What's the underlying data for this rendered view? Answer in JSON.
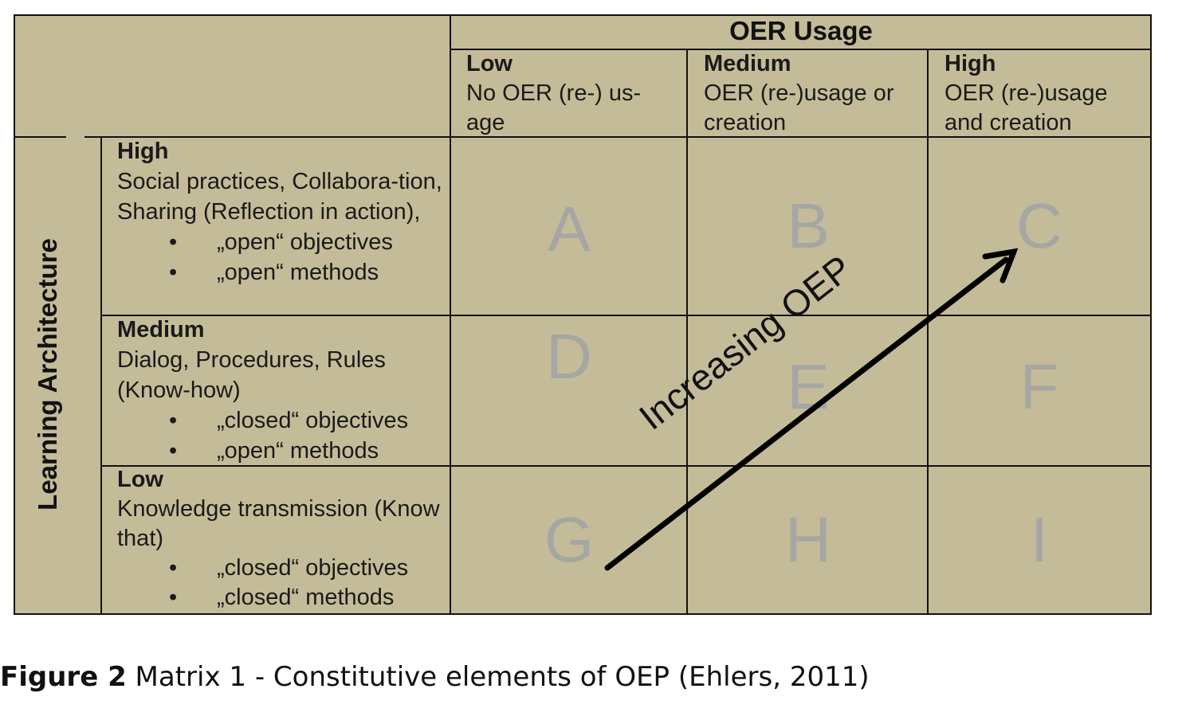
{
  "matrix": {
    "column_axis_title": "OER Usage",
    "row_axis_title": "Learning Architecture",
    "columns": [
      {
        "level": "Low",
        "description": "No OER (re-) us-age"
      },
      {
        "level": "Medium",
        "description": "OER (re-)usage or creation"
      },
      {
        "level": "High",
        "description": "OER (re-)usage and creation"
      }
    ],
    "rows": [
      {
        "level": "High",
        "description": "Social practices, Collabora-tion, Sharing (Reflection in action),",
        "bullets": [
          "„open“ objectives",
          "„open“ methods"
        ]
      },
      {
        "level": "Medium",
        "description": "Dialog, Procedures, Rules (Know-how)",
        "bullets": [
          "„closed“ objectives",
          "„open“ methods"
        ]
      },
      {
        "level": "Low",
        "description": "Knowledge transmission (Know that)",
        "bullets": [
          "„closed“ objectives",
          "„closed“ methods"
        ]
      }
    ],
    "cells": [
      "A",
      "B",
      "C",
      "D",
      "E",
      "F",
      "G",
      "H",
      "I"
    ],
    "arrow_label": "Increasing OEP",
    "colors": {
      "background": "#c4bc98",
      "letters": "#a6a6a4",
      "lines": "#111111"
    }
  },
  "caption": {
    "label": "Figure 2",
    "text": " Matrix 1 - Constitutive elements of OEP (Ehlers, 2011)"
  }
}
